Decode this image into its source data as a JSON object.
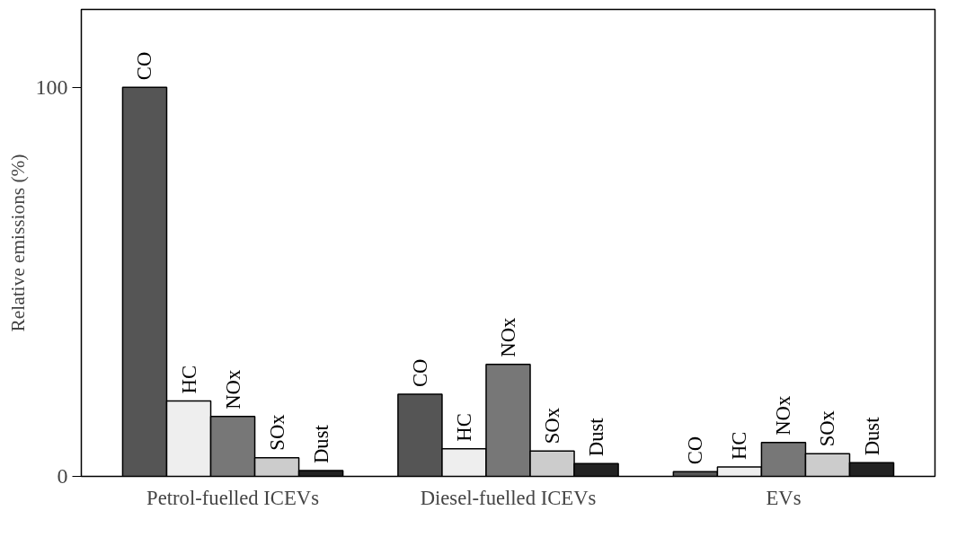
{
  "chart_data": {
    "type": "bar",
    "ylabel": "Relative emissions (%)",
    "categories": [
      "Petrol-fuelled ICEVs",
      "Diesel-fuelled ICEVs",
      "EVs"
    ],
    "series": [
      {
        "name": "CO",
        "color": "#555555",
        "values": [
          100,
          21.1,
          1.2
        ]
      },
      {
        "name": "HC",
        "color": "#eeeeee",
        "values": [
          19.4,
          7.1,
          2.4
        ]
      },
      {
        "name": "NOx",
        "color": "#777777",
        "values": [
          15.4,
          28.8,
          8.7
        ]
      },
      {
        "name": "SOx",
        "color": "#cccccc",
        "values": [
          4.8,
          6.5,
          5.8
        ]
      },
      {
        "name": "Dust",
        "color": "#222222",
        "values": [
          1.5,
          3.3,
          3.5
        ]
      }
    ],
    "ylim": [
      0,
      120
    ],
    "yticks": [
      0,
      100
    ],
    "grid": false,
    "legend": false
  }
}
